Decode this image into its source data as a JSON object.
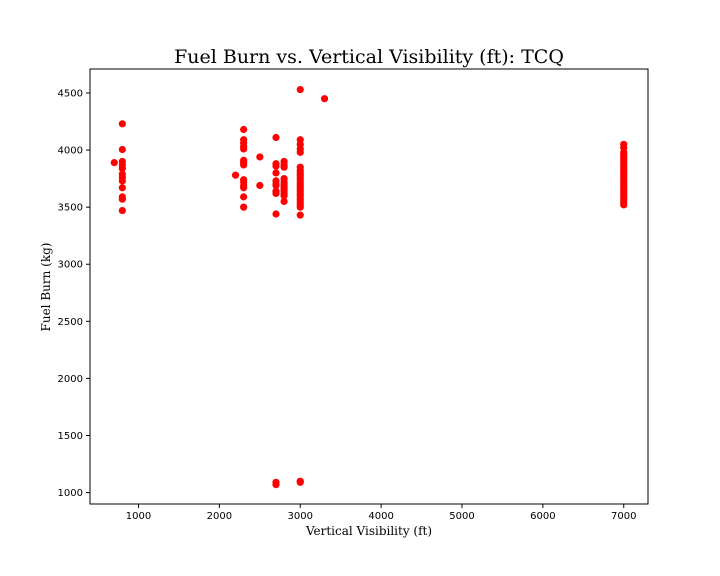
{
  "chart_data": {
    "type": "scatter",
    "title": "Fuel Burn vs. Vertical Visibility (ft): TCQ",
    "xlabel": "Vertical Visibility (ft)",
    "ylabel": "Fuel Burn (kg)",
    "xlim": [
      400,
      7300
    ],
    "ylim": [
      900,
      4710
    ],
    "xticks": [
      1000,
      2000,
      3000,
      4000,
      5000,
      6000,
      7000
    ],
    "yticks": [
      1000,
      1500,
      2000,
      2500,
      3000,
      3500,
      4000,
      4500
    ],
    "grid": false,
    "marker_color": "#ff0000",
    "points": [
      [
        700,
        3890
      ],
      [
        800,
        4230
      ],
      [
        800,
        4005
      ],
      [
        800,
        3900
      ],
      [
        800,
        3870
      ],
      [
        800,
        3840
      ],
      [
        800,
        3790
      ],
      [
        800,
        3760
      ],
      [
        800,
        3730
      ],
      [
        800,
        3670
      ],
      [
        800,
        3590
      ],
      [
        800,
        3570
      ],
      [
        800,
        3470
      ],
      [
        2200,
        3780
      ],
      [
        2300,
        4180
      ],
      [
        2300,
        4090
      ],
      [
        2300,
        4060
      ],
      [
        2300,
        4030
      ],
      [
        2300,
        4010
      ],
      [
        2300,
        3910
      ],
      [
        2300,
        3890
      ],
      [
        2300,
        3870
      ],
      [
        2300,
        3740
      ],
      [
        2300,
        3720
      ],
      [
        2300,
        3690
      ],
      [
        2300,
        3670
      ],
      [
        2300,
        3590
      ],
      [
        2300,
        3500
      ],
      [
        2500,
        3940
      ],
      [
        2500,
        3690
      ],
      [
        2700,
        4110
      ],
      [
        2700,
        3880
      ],
      [
        2700,
        3860
      ],
      [
        2700,
        3800
      ],
      [
        2700,
        3730
      ],
      [
        2700,
        3700
      ],
      [
        2700,
        3690
      ],
      [
        2700,
        3640
      ],
      [
        2700,
        3620
      ],
      [
        2700,
        3440
      ],
      [
        2700,
        1090
      ],
      [
        2700,
        1070
      ],
      [
        2800,
        3900
      ],
      [
        2800,
        3870
      ],
      [
        2800,
        3850
      ],
      [
        2800,
        3750
      ],
      [
        2800,
        3720
      ],
      [
        2800,
        3700
      ],
      [
        2800,
        3680
      ],
      [
        2800,
        3660
      ],
      [
        2800,
        3640
      ],
      [
        2800,
        3620
      ],
      [
        2800,
        3600
      ],
      [
        2800,
        3550
      ],
      [
        3000,
        4530
      ],
      [
        3000,
        4090
      ],
      [
        3000,
        4050
      ],
      [
        3000,
        4010
      ],
      [
        3000,
        3980
      ],
      [
        3000,
        3850
      ],
      [
        3000,
        3820
      ],
      [
        3000,
        3800
      ],
      [
        3000,
        3780
      ],
      [
        3000,
        3760
      ],
      [
        3000,
        3740
      ],
      [
        3000,
        3720
      ],
      [
        3000,
        3700
      ],
      [
        3000,
        3680
      ],
      [
        3000,
        3660
      ],
      [
        3000,
        3640
      ],
      [
        3000,
        3620
      ],
      [
        3000,
        3600
      ],
      [
        3000,
        3580
      ],
      [
        3000,
        3560
      ],
      [
        3000,
        3540
      ],
      [
        3000,
        3520
      ],
      [
        3000,
        3500
      ],
      [
        3000,
        3430
      ],
      [
        3000,
        1100
      ],
      [
        3000,
        1090
      ],
      [
        3300,
        4450
      ],
      [
        7000,
        4050
      ],
      [
        7000,
        4020
      ],
      [
        7000,
        3980
      ],
      [
        7000,
        3960
      ],
      [
        7000,
        3940
      ],
      [
        7000,
        3920
      ],
      [
        7000,
        3900
      ],
      [
        7000,
        3880
      ],
      [
        7000,
        3860
      ],
      [
        7000,
        3840
      ],
      [
        7000,
        3820
      ],
      [
        7000,
        3800
      ],
      [
        7000,
        3780
      ],
      [
        7000,
        3760
      ],
      [
        7000,
        3740
      ],
      [
        7000,
        3720
      ],
      [
        7000,
        3700
      ],
      [
        7000,
        3680
      ],
      [
        7000,
        3660
      ],
      [
        7000,
        3640
      ],
      [
        7000,
        3620
      ],
      [
        7000,
        3600
      ],
      [
        7000,
        3580
      ],
      [
        7000,
        3560
      ],
      [
        7000,
        3540
      ],
      [
        7000,
        3520
      ]
    ]
  }
}
